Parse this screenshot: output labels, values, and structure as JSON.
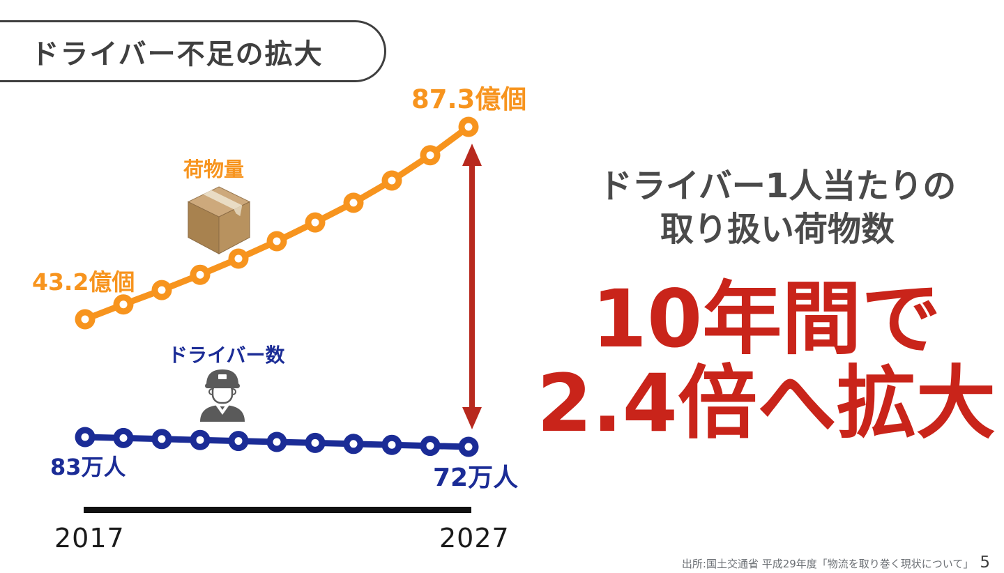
{
  "title": {
    "label": "ドライバー不足の拡大"
  },
  "colors": {
    "orange": "#f7941e",
    "blue": "#1b2c96",
    "red": "#c9241a",
    "arrow_red": "#b8291e",
    "heading_gray": "#4a4a4a",
    "axis_black": "#111111"
  },
  "chart_data": {
    "type": "line",
    "x": [
      2017,
      2018,
      2019,
      2020,
      2021,
      2022,
      2023,
      2024,
      2025,
      2026,
      2027
    ],
    "series": [
      {
        "name": "荷物量",
        "unit": "億個",
        "color": "#f7941e",
        "values": [
          43.2,
          46.6,
          49.9,
          53.4,
          57.1,
          61.1,
          65.4,
          69.9,
          75.0,
          80.8,
          87.3
        ]
      },
      {
        "name": "ドライバー数",
        "unit": "万人",
        "color": "#1b2c96",
        "values": [
          83,
          81.9,
          80.8,
          79.7,
          78.6,
          77.5,
          76.4,
          75.3,
          74.2,
          73.1,
          72
        ]
      }
    ],
    "annotations": {
      "cargo_start_label": "43.2億個",
      "cargo_end_label": "87.3億個",
      "cargo_series_label": "荷物量",
      "driver_series_label": "ドライバー数",
      "driver_start_label": "83万人",
      "driver_end_label": "72万人"
    },
    "x_axis": {
      "start_label": "2017",
      "end_label": "2027"
    },
    "legend_position": "inline-icons",
    "grid": false
  },
  "right_panel": {
    "heading_line1": "ドライバー1人当たりの",
    "heading_line2": "取り扱い荷物数",
    "highlight_line1": "10年間で",
    "highlight_line2": "2.4倍へ拡大"
  },
  "footer": {
    "source": "出所:国土交通省 平成29年度「物流を取り巻く現状について」",
    "page_number": "5"
  }
}
